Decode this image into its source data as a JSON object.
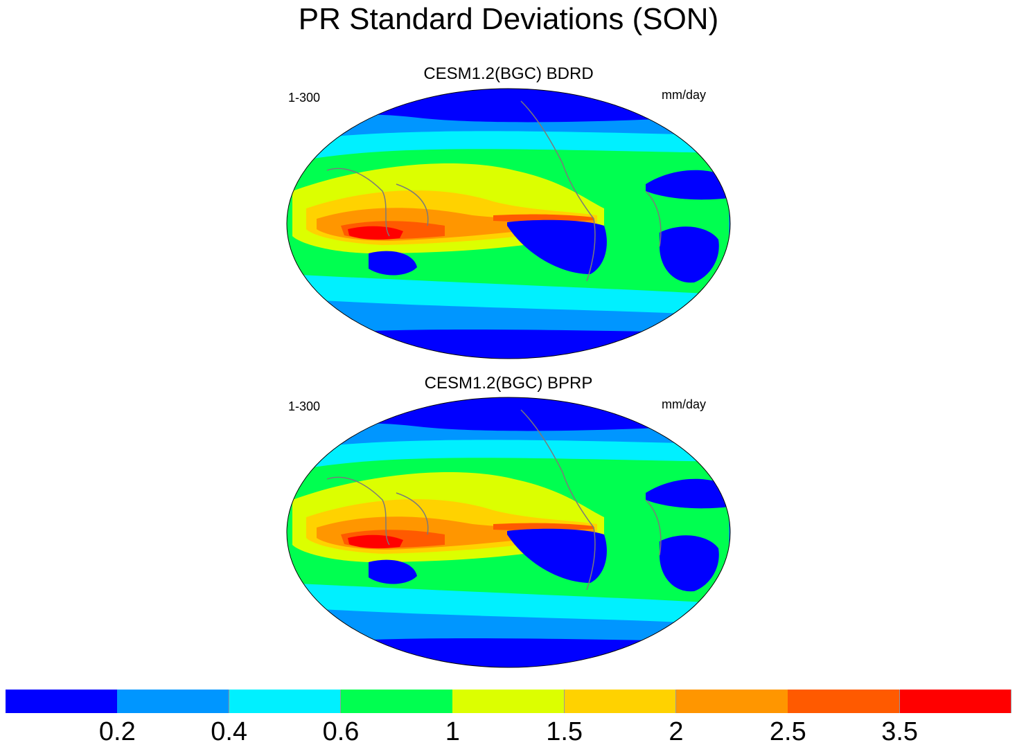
{
  "figure": {
    "title": "PR Standard Deviations (SON)"
  },
  "panels": [
    {
      "title": "CESM1.2(BGC) BDRD",
      "left_label": "1-300",
      "right_label": "mm/day"
    },
    {
      "title": "CESM1.2(BGC) BPRP",
      "left_label": "1-300",
      "right_label": "mm/day"
    }
  ],
  "colorbar": {
    "colors": [
      "#0000ff",
      "#0096ff",
      "#00f0ff",
      "#00ff50",
      "#dcff00",
      "#ffd200",
      "#ff9600",
      "#ff5a00",
      "#ff0000"
    ],
    "labels": [
      "0.2",
      "0.4",
      "0.6",
      "1",
      "1.5",
      "2",
      "2.5",
      "3.5"
    ]
  },
  "chart_data": {
    "type": "heatmap",
    "title": "PR Standard Deviations (SON)",
    "variable": "PR",
    "season": "SON",
    "units": "mm/day",
    "contour_levels": [
      0.2,
      0.4,
      0.6,
      1,
      1.5,
      2,
      2.5,
      3.5
    ],
    "maps": [
      "CESM1.2(BGC) BDRD",
      "CESM1.2(BGC) BPRP"
    ]
  }
}
